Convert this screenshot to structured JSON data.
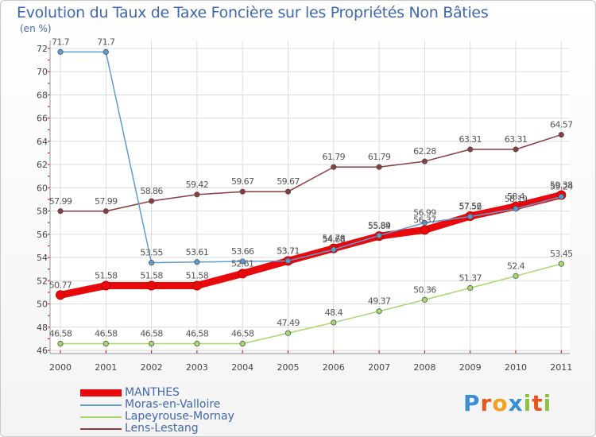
{
  "title": "Evolution du Taux de Taxe Foncière sur les Propriétés Non Bâties",
  "unit_label": "(en %)",
  "logo": {
    "letters": [
      "P",
      "r",
      "o",
      "x",
      "i",
      "t",
      "i"
    ],
    "colors": [
      "#3b8fd8",
      "#e8551f",
      "#f0a023",
      "#3b8fd8",
      "#8bc23f",
      "#e8551f",
      "#8bc23f"
    ]
  },
  "chart_data": {
    "type": "line",
    "title": "Evolution du Taux de Taxe Foncière sur les Propriétés Non Bâties",
    "ylabel": "(en %)",
    "xlabel": "",
    "x": [
      "2000",
      "2001",
      "2002",
      "2003",
      "2004",
      "2005",
      "2006",
      "2007",
      "2008",
      "2009",
      "2010",
      "2011"
    ],
    "ylim": [
      46,
      72
    ],
    "yticks": [
      46,
      48,
      50,
      52,
      54,
      56,
      58,
      60,
      62,
      64,
      66,
      68,
      70,
      72
    ],
    "grid": true,
    "legend_position": "bottom-left",
    "series": [
      {
        "name": "MANTHES",
        "color": "#e8090c",
        "width": 9,
        "values": [
          50.77,
          51.58,
          51.58,
          51.58,
          52.61,
          53.71,
          54.78,
          55.84,
          56.37,
          57.56,
          58.4,
          59.38
        ],
        "labels": [
          "50.77",
          "51.58",
          "51.58",
          "51.58",
          "52.61",
          "53.71",
          "54.78",
          "55.84",
          "56.37",
          "57.56",
          "58.4",
          "59.38"
        ]
      },
      {
        "name": "Moras-en-Valloire",
        "color": "#5e9bd1",
        "width": 1.5,
        "values": [
          71.7,
          71.7,
          53.55,
          53.61,
          53.66,
          53.71,
          54.68,
          55.89,
          56.99,
          57.52,
          58.19,
          59.24
        ],
        "labels": [
          "71.7",
          "71.7",
          "53.55",
          "53.61",
          "53.66",
          "53.71",
          "54.68",
          "55.89",
          "56.99",
          "57.52",
          "58.19",
          "59.24"
        ]
      },
      {
        "name": "Lapeyrouse-Mornay",
        "color": "#a6d86e",
        "width": 1.5,
        "values": [
          46.58,
          46.58,
          46.58,
          46.58,
          46.58,
          47.49,
          48.4,
          49.37,
          50.36,
          51.37,
          52.4,
          53.45
        ],
        "labels": [
          "46.58",
          "46.58",
          "46.58",
          "46.58",
          "46.58",
          "47.49",
          "48.4",
          "49.37",
          "50.36",
          "51.37",
          "52.4",
          "53.45"
        ]
      },
      {
        "name": "Lens-Lestang",
        "color": "#8c3b3e",
        "width": 1.5,
        "values": [
          57.99,
          57.99,
          58.86,
          59.42,
          59.67,
          59.67,
          61.79,
          61.79,
          62.28,
          63.31,
          63.31,
          64.57
        ],
        "labels": [
          "57.99",
          "57.99",
          "58.86",
          "59.42",
          "59.67",
          "59.67",
          "61.79",
          "61.79",
          "62.28",
          "63.31",
          "63.31",
          "64.57"
        ]
      }
    ]
  }
}
